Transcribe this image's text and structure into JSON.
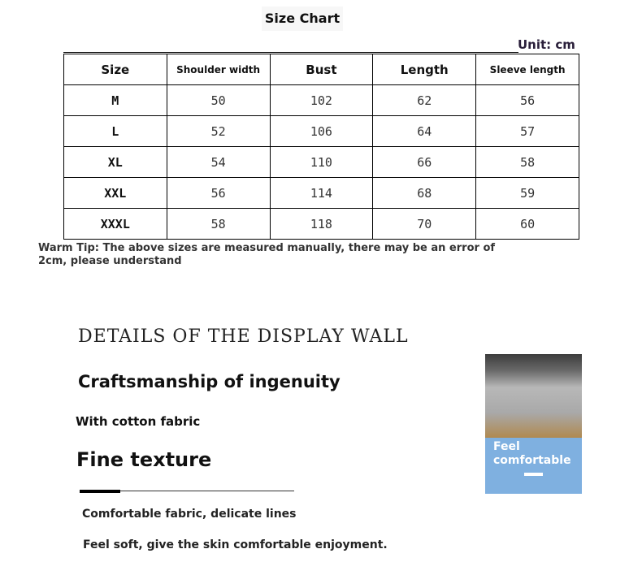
{
  "title": "Size Chart",
  "unit": "Unit: cm",
  "table": {
    "headers": [
      "Size",
      "Shoulder width",
      "Bust",
      "Length",
      "Sleeve length"
    ],
    "rows": [
      [
        "M",
        "50",
        "102",
        "62",
        "56"
      ],
      [
        "L",
        "52",
        "106",
        "64",
        "57"
      ],
      [
        "XL",
        "54",
        "110",
        "66",
        "58"
      ],
      [
        "XXL",
        "56",
        "114",
        "68",
        "59"
      ],
      [
        "XXXL",
        "58",
        "118",
        "70",
        "60"
      ]
    ]
  },
  "tip": "Warm Tip: The above sizes are measured manually, there may be an error of 2cm, please understand",
  "details": {
    "heading": "DETAILS OF THE DISPLAY WALL",
    "subheading": "Craftsmanship of ingenuity",
    "fabric": "With cotton fabric",
    "texture": "Fine texture",
    "line1": "Comfortable fabric, delicate lines",
    "line2": "Feel soft, give the skin comfortable enjoyment."
  },
  "photo": {
    "caption_line1": "Feel",
    "caption_line2": "comfortable",
    "panel_color": "#7fb0e0"
  }
}
